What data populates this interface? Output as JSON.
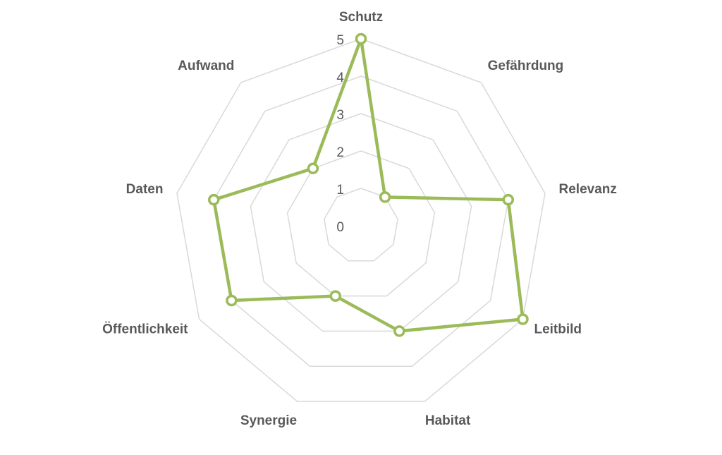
{
  "chart_data": {
    "type": "radar",
    "categories": [
      "Schutz",
      "Gefährdung",
      "Relevanz",
      "Leitbild",
      "Habitat",
      "Synergie",
      "Öffentlichkeit",
      "Daten",
      "Aufwand"
    ],
    "values": [
      5,
      1,
      4,
      5,
      3,
      2,
      4,
      4,
      2
    ],
    "color": "#9bbb59",
    "ylim": [
      0,
      5
    ],
    "yticks": [
      0,
      1,
      2,
      3,
      4,
      5
    ],
    "grid": true
  }
}
